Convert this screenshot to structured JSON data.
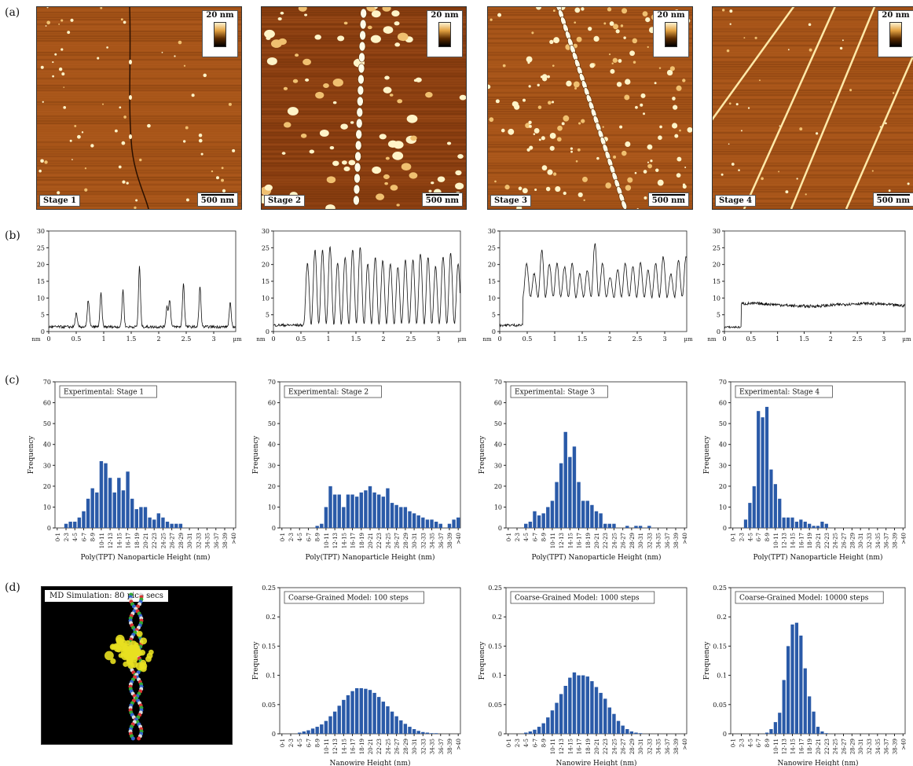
{
  "labels": {
    "a": "(a)",
    "b": "(b)",
    "c": "(c)",
    "d": "(d)"
  },
  "afm": [
    {
      "stage": "Stage 1",
      "scale": "20 nm",
      "bar": "500 nm"
    },
    {
      "stage": "Stage 2",
      "scale": "20 nm",
      "bar": "500 nm"
    },
    {
      "stage": "Stage 3",
      "scale": "20 nm",
      "bar": "500 nm"
    },
    {
      "stage": "Stage 4",
      "scale": "20 nm",
      "bar": "500 nm"
    }
  ],
  "md": {
    "label": "MD Simulation: 80 pico secs"
  },
  "chart_data": [
    {
      "type": "line",
      "panel": "b1",
      "xlabel": "µm",
      "ylabel": "nm",
      "xlim": [
        0,
        3.4
      ],
      "ylim": [
        0,
        30
      ],
      "xticks": [
        "0",
        "0.5",
        "1",
        "1.5",
        "2",
        "2.5",
        "3"
      ],
      "yticks": [
        "0",
        "5",
        "10",
        "15",
        "20",
        "25",
        "30"
      ],
      "peaks": [
        [
          0.5,
          4
        ],
        [
          0.72,
          8
        ],
        [
          0.95,
          10
        ],
        [
          1.35,
          11
        ],
        [
          1.65,
          18
        ],
        [
          2.15,
          6
        ],
        [
          2.2,
          8
        ],
        [
          2.45,
          13
        ],
        [
          2.75,
          12
        ],
        [
          3.3,
          7
        ]
      ],
      "base": 1
    },
    {
      "type": "line",
      "panel": "b2",
      "xlabel": "µm",
      "ylabel": "nm",
      "xlim": [
        0,
        3.4
      ],
      "ylim": [
        0,
        30
      ],
      "xticks": [
        "0",
        "0.5",
        "1",
        "1.5",
        "2",
        "2.5",
        "3"
      ],
      "yticks": [
        "0",
        "5",
        "10",
        "15",
        "20",
        "25",
        "30"
      ],
      "step": 0.55,
      "low": 1.5,
      "high_base": 2,
      "pattern": "wire",
      "amp": [
        20,
        24,
        24,
        25,
        20,
        22,
        24,
        25,
        20,
        22,
        21,
        20,
        19,
        21,
        21,
        23,
        22,
        19,
        22,
        23
      ],
      "period": 0.137
    },
    {
      "type": "line",
      "panel": "b3",
      "xlabel": "µm",
      "ylabel": "nm",
      "xlim": [
        0,
        3.4
      ],
      "ylim": [
        0,
        30
      ],
      "xticks": [
        "0",
        "0.5",
        "1",
        "1.5",
        "2",
        "2.5",
        "3"
      ],
      "yticks": [
        "0",
        "5",
        "10",
        "15",
        "20",
        "25",
        "30"
      ],
      "step": 0.42,
      "low": 1.5,
      "high_base": 10,
      "pattern": "wire",
      "amp": [
        20,
        17,
        24,
        20,
        20,
        19,
        20,
        17,
        18,
        26,
        20,
        16,
        18,
        20,
        19,
        20,
        18,
        20,
        22,
        17,
        21,
        22
      ],
      "period": 0.138
    },
    {
      "type": "line",
      "panel": "b4",
      "xlabel": "µm",
      "ylabel": "nm",
      "xlim": [
        0,
        3.4
      ],
      "ylim": [
        0,
        30
      ],
      "xticks": [
        "0",
        "0.5",
        "1",
        "1.5",
        "2",
        "2.5",
        "3"
      ],
      "yticks": [
        "0",
        "5",
        "10",
        "15",
        "20",
        "25",
        "30"
      ],
      "step": 0.32,
      "low": 1,
      "high_base": 7.5,
      "pattern": "flat"
    },
    {
      "type": "bar",
      "panel": "c1",
      "title": "Experimental: Stage 1",
      "xlabel": "Poly(TPT) Nanoparticle Height (nm)",
      "ylabel": "Frequency",
      "ylim": [
        0,
        70
      ],
      "values": [
        0,
        0,
        2,
        3,
        3,
        5,
        8,
        14,
        19,
        17,
        32,
        31,
        24,
        17,
        24,
        18,
        27,
        14,
        9,
        10,
        10,
        5,
        4,
        7,
        5,
        3,
        2,
        2,
        2,
        0,
        0,
        0,
        0,
        0,
        0,
        0,
        0,
        0,
        0,
        0,
        0
      ]
    },
    {
      "type": "bar",
      "panel": "c2",
      "title": "Experimental: Stage 2",
      "xlabel": "Poly(TPT) Nanoparticle Height (nm)",
      "ylabel": "Frequency",
      "ylim": [
        0,
        70
      ],
      "values": [
        0,
        0,
        0,
        0,
        0,
        0,
        0,
        0,
        1,
        2,
        10,
        20,
        16,
        16,
        10,
        16,
        16,
        15,
        17,
        18,
        20,
        17,
        16,
        15,
        19,
        12,
        11,
        10,
        10,
        8,
        7,
        6,
        5,
        4,
        4,
        3,
        2,
        0,
        2,
        4,
        5
      ]
    },
    {
      "type": "bar",
      "panel": "c3",
      "title": "Experimental: Stage 3",
      "xlabel": "Poly(TPT) Nanoparticle Height (nm)",
      "ylabel": "Frequency",
      "ylim": [
        0,
        70
      ],
      "values": [
        0,
        0,
        0,
        0,
        2,
        3,
        8,
        6,
        7,
        10,
        13,
        22,
        31,
        46,
        34,
        39,
        22,
        13,
        13,
        11,
        8,
        7,
        2,
        2,
        2,
        0,
        0,
        1,
        0,
        1,
        1,
        0,
        1,
        0,
        0,
        0,
        0,
        0,
        0,
        0,
        0
      ]
    },
    {
      "type": "bar",
      "panel": "c4",
      "title": "Experimental: Stage 4",
      "xlabel": "Poly(TPT) Nanoparticle Height (nm)",
      "ylabel": "Frequency",
      "ylim": [
        0,
        70
      ],
      "values": [
        0,
        0,
        0,
        4,
        12,
        20,
        56,
        53,
        58,
        28,
        21,
        14,
        5,
        5,
        5,
        3,
        4,
        3,
        2,
        1,
        1,
        3,
        2,
        0,
        0,
        0,
        0,
        0,
        0,
        0,
        0,
        0,
        0,
        0,
        0,
        0,
        0,
        0,
        0,
        0,
        0
      ]
    },
    {
      "type": "bar",
      "panel": "d2",
      "title": "Coarse-Grained Model: 100 steps",
      "xlabel": "Nanowire Height (nm)",
      "ylabel": "Frequency",
      "ylim": [
        0,
        0.25
      ],
      "values": [
        0,
        0,
        0,
        0,
        0.002,
        0.004,
        0.006,
        0.009,
        0.012,
        0.016,
        0.022,
        0.03,
        0.038,
        0.048,
        0.058,
        0.066,
        0.073,
        0.078,
        0.078,
        0.077,
        0.075,
        0.07,
        0.063,
        0.055,
        0.047,
        0.038,
        0.03,
        0.023,
        0.017,
        0.012,
        0.008,
        0.005,
        0.003,
        0.002,
        0.001,
        0.001,
        0,
        0,
        0,
        0,
        0
      ]
    },
    {
      "type": "bar",
      "panel": "d3",
      "title": "Coarse-Grained Model: 1000 steps",
      "xlabel": "Nanowire Height (nm)",
      "ylabel": "Frequency",
      "ylim": [
        0,
        0.25
      ],
      "values": [
        0,
        0,
        0,
        0,
        0.002,
        0.004,
        0.007,
        0.012,
        0.018,
        0.028,
        0.04,
        0.053,
        0.068,
        0.082,
        0.096,
        0.105,
        0.1,
        0.1,
        0.098,
        0.09,
        0.08,
        0.07,
        0.06,
        0.045,
        0.034,
        0.022,
        0.014,
        0.008,
        0.004,
        0.002,
        0.001,
        0,
        0,
        0,
        0,
        0,
        0,
        0,
        0,
        0,
        0
      ]
    },
    {
      "type": "bar",
      "panel": "d4",
      "title": "Coarse-Grained Model: 10000 steps",
      "xlabel": "Nanowire Height (nm)",
      "ylabel": "Frequency",
      "ylim": [
        0,
        0.25
      ],
      "values": [
        0,
        0,
        0,
        0,
        0,
        0,
        0,
        0,
        0.002,
        0.008,
        0.02,
        0.036,
        0.092,
        0.15,
        0.187,
        0.19,
        0.168,
        0.112,
        0.064,
        0.038,
        0.012,
        0.004,
        0.001,
        0,
        0,
        0,
        0,
        0,
        0,
        0,
        0,
        0,
        0,
        0,
        0,
        0,
        0,
        0,
        0,
        0,
        0
      ]
    }
  ],
  "bin_labels": [
    "0-1",
    "2-3",
    "4-5",
    "6-7",
    "8-9",
    "10-11",
    "12-13",
    "14-15",
    "16-17",
    "18-19",
    "20-21",
    "22-23",
    "24-25",
    "26-27",
    "28-29",
    "30-31",
    "32-33",
    "34-35",
    "36-37",
    "38-39",
    ">40"
  ]
}
